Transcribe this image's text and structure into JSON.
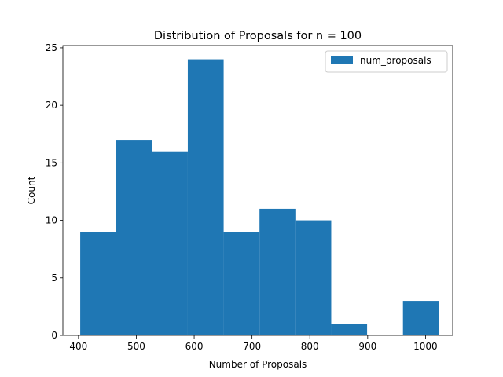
{
  "chart_data": {
    "type": "bar",
    "title": "Distribution of Proposals for n = 100",
    "xlabel": "Number of Proposals",
    "ylabel": "Count",
    "xlim": [
      373,
      1047
    ],
    "ylim": [
      0,
      25.2
    ],
    "xticks": [
      400,
      500,
      600,
      700,
      800,
      900,
      1000
    ],
    "yticks": [
      0,
      5,
      10,
      15,
      20,
      25
    ],
    "grid": false,
    "legend": {
      "position": "top-right",
      "entries": [
        "num_proposals"
      ]
    },
    "series": [
      {
        "name": "num_proposals",
        "color": "#1f77b4",
        "bins": [
          {
            "start": 403,
            "end": 465,
            "count": 9
          },
          {
            "start": 465,
            "end": 527,
            "count": 17
          },
          {
            "start": 527,
            "end": 589,
            "count": 16
          },
          {
            "start": 589,
            "end": 651,
            "count": 24
          },
          {
            "start": 651,
            "end": 713,
            "count": 9
          },
          {
            "start": 713,
            "end": 775,
            "count": 11
          },
          {
            "start": 775,
            "end": 837,
            "count": 10
          },
          {
            "start": 837,
            "end": 899,
            "count": 1
          },
          {
            "start": 899,
            "end": 961,
            "count": 0
          },
          {
            "start": 961,
            "end": 1023,
            "count": 3
          }
        ]
      }
    ]
  }
}
